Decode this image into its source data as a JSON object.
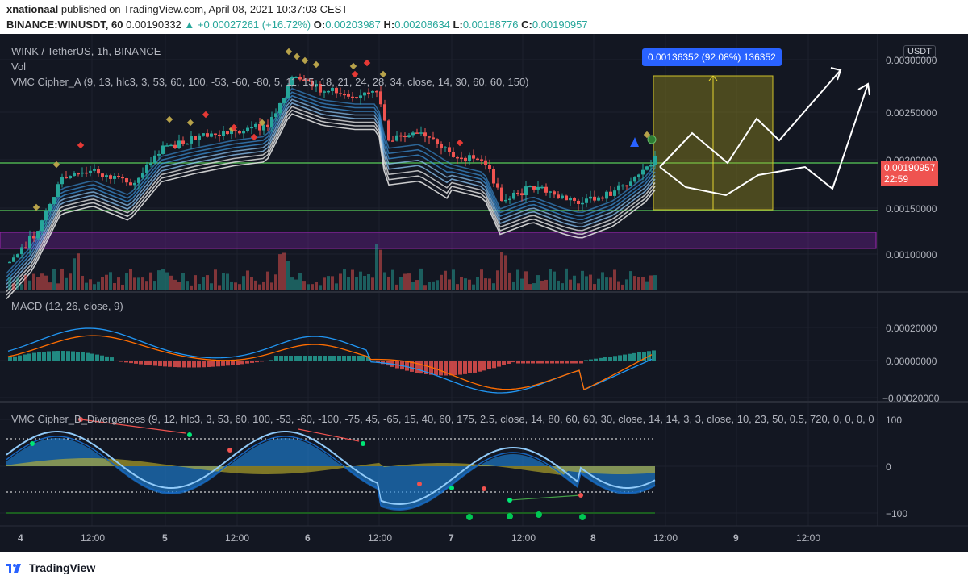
{
  "header": {
    "publisher": "xnationaal",
    "published_line": "published on TradingView.com, April 08, 2021 10:37:03 CEST",
    "symbol": "BINANCE:WINUSDT, 60",
    "last": "0.00190332",
    "change": "▲ +0.00027261 (+16.72%)",
    "ohlc": {
      "o_label": "O:",
      "o": "0.00203987",
      "h_label": "H:",
      "h": "0.00208634",
      "l_label": "L:",
      "l": "0.00188776",
      "c_label": "C:",
      "c": "0.00190957"
    }
  },
  "legend": {
    "title": "WINK / TetherUS, 1h, BINANCE",
    "vol": "Vol",
    "vmc_a": "VMC Cipher_A (9, 13, hlc3, 3, 53, 60, 100, -53, -60, -80, 5, 11, 15, 18, 21, 24, 28, 34, close, 14, 30, 60, 60, 150)",
    "macd": "MACD (12, 26, close, 9)",
    "vmc_b": "VMC Cipher_B_Divergences (9, 12, hlc3, 3, 53, 60, 100, -53, -60, -100, -75, 45, -65, 15, 40, 60, 175, 2.5, close, 14, 80, 60, 60, 30, close, 14, 14, 3, 3, close, 10, 23, 50, 0.5, 720, 0, 0, 0, 0)"
  },
  "price_axis": {
    "currency_button": "USDT",
    "ticks": [
      "0.00300000",
      "0.00250000",
      "0.00200000",
      "0.00150000",
      "0.00100000"
    ],
    "current_price": "0.00190957",
    "countdown": "22:59"
  },
  "macd_axis": {
    "ticks": [
      "0.00020000",
      "0.00000000",
      "−0.00020000"
    ]
  },
  "osc_axis": {
    "ticks": [
      "100",
      "0",
      "−100"
    ]
  },
  "time_axis": {
    "ticks": [
      "4",
      "12:00",
      "5",
      "12:00",
      "6",
      "12:00",
      "7",
      "12:00",
      "8",
      "12:00",
      "9",
      "12:00"
    ]
  },
  "measure_label": "0.00136352 (92.08%) 136352",
  "footer": {
    "brand": "TradingView"
  },
  "colors": {
    "up": "#26a69a",
    "down": "#ef5350",
    "bg": "#131722",
    "level": "#4caf50",
    "zone": "#9c27b0",
    "measure": "#2962ff"
  }
}
